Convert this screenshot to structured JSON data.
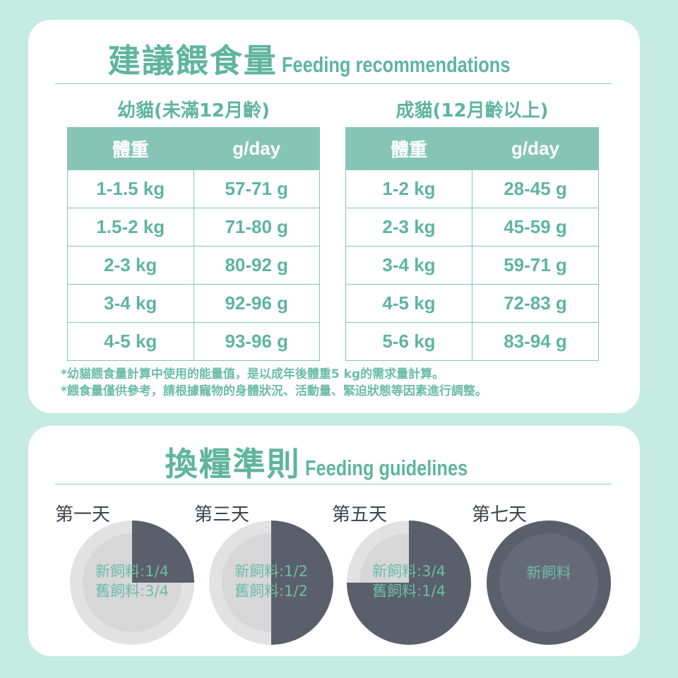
{
  "recommendations": {
    "title_zh": "建議餵食量",
    "title_en": "Feeding recommendations",
    "kitten": {
      "title": "幼貓(未滿12月齡)",
      "headers": [
        "體重",
        "g/day"
      ],
      "rows": [
        [
          "1-1.5 kg",
          "57-71 g"
        ],
        [
          "1.5-2 kg",
          "71-80 g"
        ],
        [
          "2-3 kg",
          "80-92 g"
        ],
        [
          "3-4 kg",
          "92-96 g"
        ],
        [
          "4-5 kg",
          "93-96 g"
        ]
      ]
    },
    "adult": {
      "title": "成貓(12月齡以上)",
      "headers": [
        "體重",
        "g/day"
      ],
      "rows": [
        [
          "1-2 kg",
          "28-45 g"
        ],
        [
          "2-3 kg",
          "45-59 g"
        ],
        [
          "3-4 kg",
          "59-71 g"
        ],
        [
          "4-5 kg",
          "72-83 g"
        ],
        [
          "5-6 kg",
          "83-94 g"
        ]
      ]
    },
    "notes": [
      "*幼貓餵食量計算中使用的能量值，是以成年後體重5 kg的需求量計算。",
      "*餵食量僅供參考，請根據寵物的身體狀況、活動量、緊迫狀態等因素進行調整。"
    ]
  },
  "guidelines": {
    "title_zh": "換糧準則",
    "title_en": "Feeding guidelines",
    "days": [
      {
        "label": "第一天",
        "new_fraction": 0.25,
        "line1": "新飼料:1/4",
        "line2": "舊飼料:3/4"
      },
      {
        "label": "第三天",
        "new_fraction": 0.5,
        "line1": "新飼料:1/2",
        "line2": "舊飼料:1/2"
      },
      {
        "label": "第五天",
        "new_fraction": 0.75,
        "line1": "新飼料:3/4",
        "line2": "舊飼料:1/4"
      },
      {
        "label": "第七天",
        "new_fraction": 1,
        "line1": "新飼料",
        "line2": ""
      }
    ]
  },
  "colors": {
    "accent": "#5fb59d",
    "header": "#86c5b5",
    "new_food": "#5b5e6b",
    "old_food": "#e2e2e2",
    "background": "#c6ebe1"
  }
}
